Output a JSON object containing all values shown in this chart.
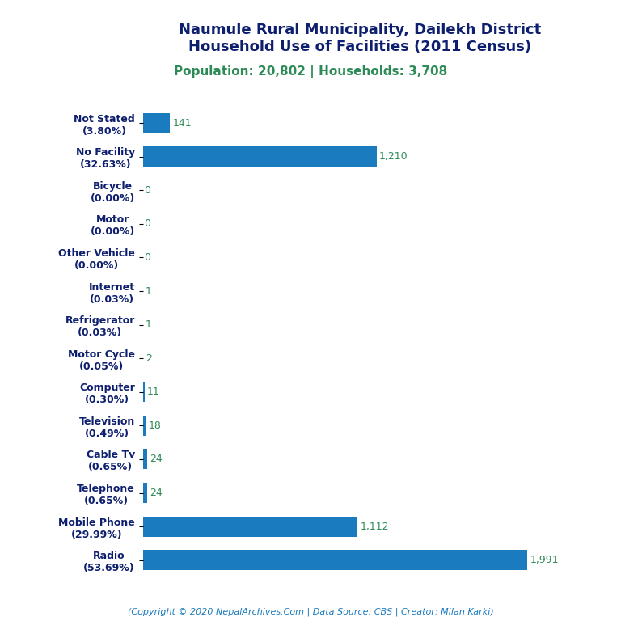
{
  "title_line1": "Naumule Rural Municipality, Dailekh District",
  "title_line2": "Household Use of Facilities (2011 Census)",
  "subtitle": "Population: 20,802 | Households: 3,708",
  "categories": [
    "Not Stated\n(3.80%)",
    "No Facility\n(32.63%)",
    "Bicycle\n(0.00%)",
    "Motor\n(0.00%)",
    "Other Vehicle\n(0.00%)",
    "Internet\n(0.03%)",
    "Refrigerator\n(0.03%)",
    "Motor Cycle\n(0.05%)",
    "Computer\n(0.30%)",
    "Television\n(0.49%)",
    "Cable Tv\n(0.65%)",
    "Telephone\n(0.65%)",
    "Mobile Phone\n(29.99%)",
    "Radio\n(53.69%)"
  ],
  "values": [
    141,
    1210,
    0,
    0,
    0,
    1,
    1,
    2,
    11,
    18,
    24,
    24,
    1112,
    1991
  ],
  "value_labels": [
    "141",
    "1,210",
    "0",
    "0",
    "0",
    "1",
    "1",
    "2",
    "11",
    "18",
    "24",
    "24",
    "1,112",
    "1,991"
  ],
  "bar_color": "#1a7bbf",
  "title_color": "#0d1f6e",
  "subtitle_color": "#2e8b57",
  "value_color": "#2e8b57",
  "footer_text": "(Copyright © 2020 NepalArchives.Com | Data Source: CBS | Creator: Milan Karki)",
  "footer_color": "#1a7bbf",
  "background_color": "#ffffff",
  "title_fontsize": 13,
  "subtitle_fontsize": 11,
  "label_fontsize": 9,
  "value_fontsize": 9,
  "footer_fontsize": 8
}
